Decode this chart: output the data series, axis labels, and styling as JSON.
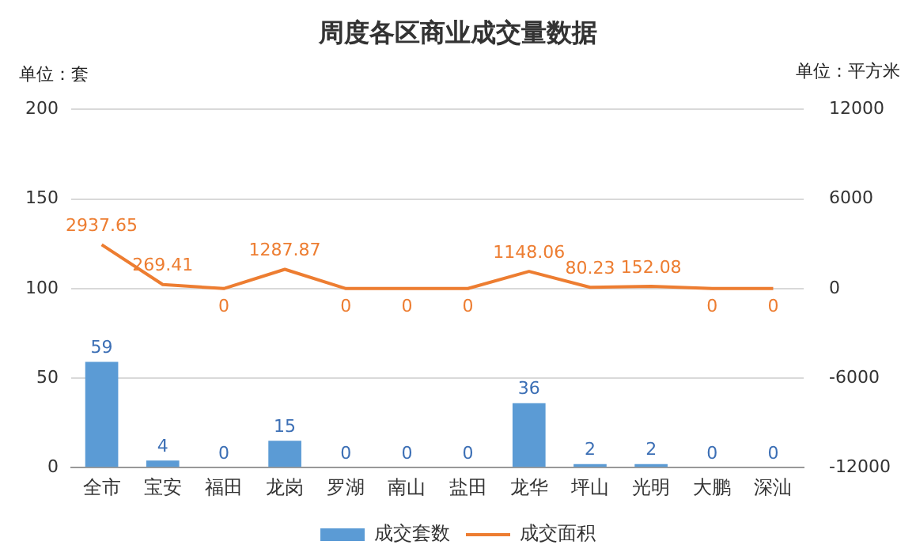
{
  "chart_data": {
    "type": "bar",
    "title": "周度各区商业成交量数据",
    "ylabel": "单位：套",
    "y2label": "单位：平方米",
    "categories": [
      "全市",
      "宝安",
      "福田",
      "龙岗",
      "罗湖",
      "南山",
      "盐田",
      "龙华",
      "坪山",
      "光明",
      "大鹏",
      "深汕"
    ],
    "series": [
      {
        "name": "成交套数",
        "color": "#5b9bd5",
        "values": [
          59,
          4,
          0,
          15,
          0,
          0,
          0,
          36,
          2,
          2,
          0,
          0
        ]
      },
      {
        "name": "成交面积",
        "type": "line",
        "axis": "y2",
        "color": "#ed7d31",
        "values": [
          2937.65,
          269.41,
          0,
          1287.87,
          0,
          0,
          0,
          1148.06,
          80.23,
          152.08,
          0,
          0
        ]
      }
    ],
    "ylim": [
      0,
      200
    ],
    "yticks": [
      0,
      50,
      100,
      150,
      200
    ],
    "y2lim": [
      -12000,
      12000
    ],
    "y2ticks": [
      -12000,
      -6000,
      0,
      6000,
      12000
    ],
    "grid": "y",
    "legend": "bottom",
    "data_labels": true,
    "marker": "none",
    "line_style": "solid"
  }
}
